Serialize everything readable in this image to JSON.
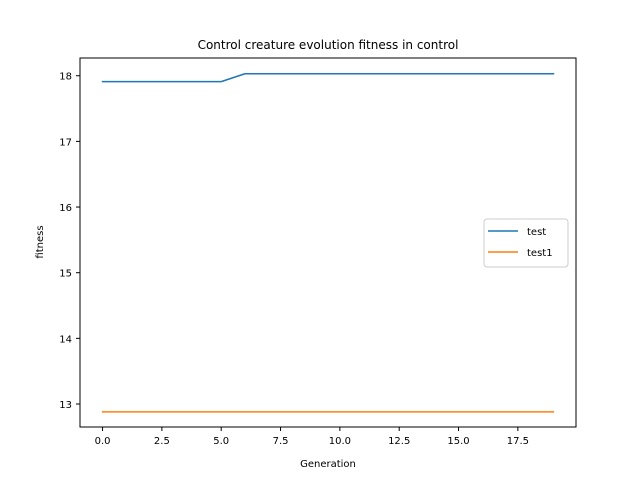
{
  "chart_data": {
    "type": "line",
    "title": "Control creature evolution fitness in control",
    "xlabel": "Generation",
    "ylabel": "fitness",
    "xlim": [
      -0.95,
      19.95
    ],
    "ylim": [
      12.65,
      18.27
    ],
    "xticks": [
      0.0,
      2.5,
      5.0,
      7.5,
      10.0,
      12.5,
      15.0,
      17.5
    ],
    "xtick_labels": [
      "0.0",
      "2.5",
      "5.0",
      "7.5",
      "10.0",
      "12.5",
      "15.0",
      "17.5"
    ],
    "yticks": [
      13,
      14,
      15,
      16,
      17,
      18
    ],
    "ytick_labels": [
      "13",
      "14",
      "15",
      "16",
      "17",
      "18"
    ],
    "grid": false,
    "legend_position": "center-right",
    "x": [
      0,
      1,
      2,
      3,
      4,
      5,
      6,
      7,
      8,
      9,
      10,
      11,
      12,
      13,
      14,
      15,
      16,
      17,
      18,
      19
    ],
    "series": [
      {
        "name": "test",
        "color": "#1f77b4",
        "values": [
          17.91,
          17.91,
          17.91,
          17.91,
          17.91,
          17.91,
          18.03,
          18.03,
          18.03,
          18.03,
          18.03,
          18.03,
          18.03,
          18.03,
          18.03,
          18.03,
          18.03,
          18.03,
          18.03,
          18.03
        ]
      },
      {
        "name": "test1",
        "color": "#ff7f0e",
        "values": [
          12.88,
          12.88,
          12.88,
          12.88,
          12.88,
          12.88,
          12.88,
          12.88,
          12.88,
          12.88,
          12.88,
          12.88,
          12.88,
          12.88,
          12.88,
          12.88,
          12.88,
          12.88,
          12.88,
          12.88
        ]
      }
    ]
  }
}
